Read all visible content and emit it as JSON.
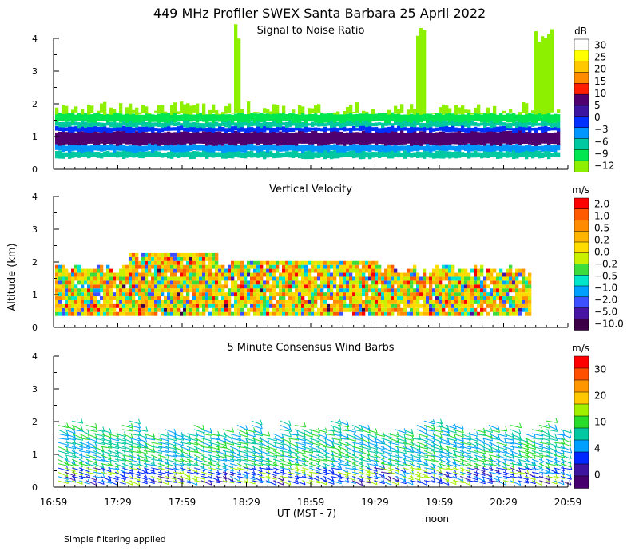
{
  "title": "449 MHz Profiler SWEX Santa Barbara 25 April 2022",
  "y_axis_label": "Altitude (km)",
  "x_axis_label": "UT  (MST - 7)",
  "noon_label": "noon",
  "footnote": "Simple filtering applied",
  "chart_data": [
    {
      "type": "heatmap",
      "title": "Signal to Noise Ratio",
      "colorbar_unit": "dB",
      "colorbar_ticks": [
        "30",
        "25",
        "20",
        "15",
        "10",
        "5",
        "0",
        "−3",
        "−6",
        "−9",
        "−12"
      ],
      "colorbar_colors": [
        "#ffffff",
        "#ffff00",
        "#ffc800",
        "#ff8c00",
        "#ff1e00",
        "#50006e",
        "#3c14a0",
        "#0030ff",
        "#0096ff",
        "#00c8a0",
        "#00e650",
        "#8cf000"
      ],
      "ylabel": "Altitude (km)",
      "ylim": [
        0,
        4
      ],
      "yticks": [
        "0",
        "1",
        "2",
        "3",
        "4"
      ],
      "xlim": [
        "16:59",
        "20:59"
      ],
      "xticks": [
        "16:59",
        "17:29",
        "17:59",
        "18:29",
        "18:59",
        "19:29",
        "19:59",
        "20:29",
        "20:59"
      ]
    },
    {
      "type": "heatmap",
      "title": "Vertical Velocity",
      "colorbar_unit": "m/s",
      "colorbar_ticks": [
        "2.0",
        "1.0",
        "0.5",
        "0.2",
        "0.0",
        "−0.2",
        "−0.5",
        "−1.0",
        "−2.0",
        "−5.0",
        "−10.0"
      ],
      "colorbar_colors": [
        "#ff0000",
        "#ff5a00",
        "#ff8c00",
        "#ffb400",
        "#ffdc00",
        "#c8f000",
        "#3cdc3c",
        "#00e6c8",
        "#00a0ff",
        "#3c50ff",
        "#4614a0",
        "#3c0046"
      ],
      "ylabel": "Altitude (km)",
      "ylim": [
        0,
        4
      ],
      "yticks": [
        "0",
        "1",
        "2",
        "3",
        "4"
      ],
      "xlim": [
        "16:59",
        "20:59"
      ],
      "xticks": [
        "16:59",
        "17:29",
        "17:59",
        "18:29",
        "18:59",
        "19:29",
        "19:59",
        "20:29",
        "20:59"
      ]
    },
    {
      "type": "scatter",
      "title": "5 Minute Consensus Wind Barbs",
      "colorbar_unit": "m/s",
      "colorbar_ticks": [
        "30",
        "20",
        "10",
        "4",
        "0"
      ],
      "colorbar_colors": [
        "#ff0000",
        "#ff5000",
        "#ff9600",
        "#ffc800",
        "#a0f000",
        "#28dc28",
        "#00c8a0",
        "#00a0ff",
        "#0028ff",
        "#3c14a0",
        "#46006e"
      ],
      "ylabel": "Altitude (km)",
      "ylim": [
        0,
        4
      ],
      "yticks": [
        "0",
        "1",
        "2",
        "3",
        "4"
      ],
      "xlim": [
        "16:59",
        "20:59"
      ],
      "xticks": [
        "16:59",
        "17:29",
        "17:59",
        "18:29",
        "18:59",
        "19:29",
        "19:59",
        "20:29",
        "20:59"
      ]
    }
  ]
}
